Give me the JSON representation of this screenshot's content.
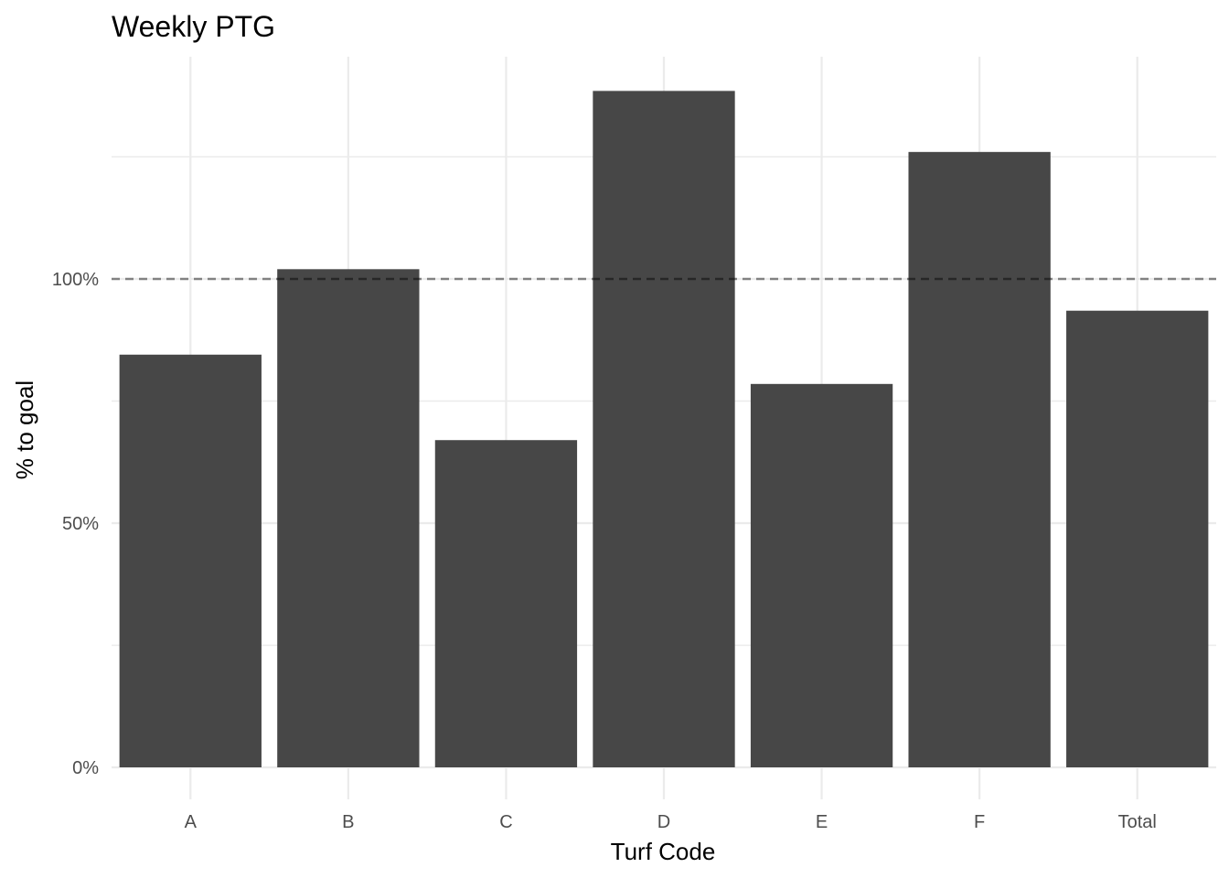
{
  "chart_data": {
    "type": "bar",
    "title": "Weekly PTG",
    "xlabel": "Turf Code",
    "ylabel": "% to goal",
    "categories": [
      "A",
      "B",
      "C",
      "D",
      "E",
      "F",
      "Total"
    ],
    "values": [
      0.845,
      1.02,
      0.67,
      1.385,
      0.785,
      1.26,
      0.935
    ],
    "ylim": [
      0,
      1.45
    ],
    "yticks": [
      0,
      0.5,
      1.0
    ],
    "ytick_labels": [
      "0%",
      "50%",
      "100%"
    ],
    "reference_line": {
      "value": 1.0,
      "style": "dashed"
    },
    "grid": true,
    "legend": "none",
    "colors": {
      "bar": "#474747",
      "grid": "#ebebeb",
      "reference_line": "#7f7f7f"
    }
  }
}
